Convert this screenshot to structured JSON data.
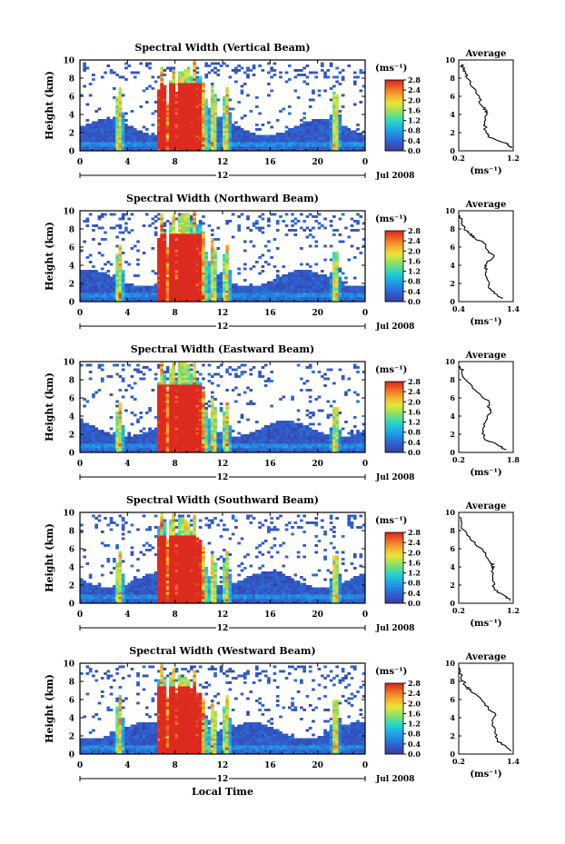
{
  "chart_data": [
    {
      "type": "heatmap",
      "title": "Spectral Width (Vertical Beam)",
      "ylabel": "Height (km)",
      "ylim": [
        0,
        10
      ],
      "yticks": [
        "0",
        "2",
        "4",
        "6",
        "8",
        "10"
      ],
      "xlim": [
        0,
        24
      ],
      "xticks": [
        "0",
        "4",
        "8",
        "12",
        "16",
        "20",
        "0"
      ],
      "date_label": "12",
      "month_label": "Jul 2008",
      "colorbar": {
        "unit": "(ms⁻¹)",
        "range": [
          0.0,
          2.8
        ],
        "ticks": [
          "2.8",
          "2.4",
          "2.0",
          "1.6",
          "1.2",
          "0.8",
          "0.4",
          "0.0"
        ]
      },
      "profile": {
        "type": "line",
        "title": "Average",
        "xlim": [
          0.2,
          1.2
        ],
        "xticks": [
          "0.2",
          "1.2"
        ],
        "xlabel": "(ms⁻¹)",
        "height": [
          0.3,
          0.8,
          1.5,
          2.0,
          3.0,
          4.0,
          4.5,
          5.0,
          6.0,
          7.0,
          8.0,
          8.5,
          9.0,
          9.5
        ],
        "width": [
          1.15,
          1.1,
          0.75,
          0.7,
          0.68,
          0.72,
          0.7,
          0.62,
          0.58,
          0.45,
          0.35,
          0.32,
          0.28,
          0.25
        ]
      }
    },
    {
      "type": "heatmap",
      "title": "Spectral Width (Northward Beam)",
      "ylabel": "Height (km)",
      "ylim": [
        0,
        10
      ],
      "yticks": [
        "0",
        "2",
        "4",
        "6",
        "8",
        "10"
      ],
      "xlim": [
        0,
        24
      ],
      "xticks": [
        "0",
        "4",
        "8",
        "12",
        "16",
        "20",
        "0"
      ],
      "date_label": "12",
      "month_label": "Jul 2008",
      "colorbar": {
        "unit": "(ms⁻¹)",
        "range": [
          0.0,
          2.8
        ],
        "ticks": [
          "2.8",
          "2.4",
          "2.0",
          "1.6",
          "1.2",
          "0.8",
          "0.4",
          "0.0"
        ]
      },
      "profile": {
        "type": "line",
        "title": "Average",
        "xlim": [
          0.4,
          1.4
        ],
        "xticks": [
          "0.4",
          "1.4"
        ],
        "xlabel": "(ms⁻¹)",
        "height": [
          0.3,
          0.8,
          1.5,
          2.5,
          3.5,
          4.0,
          5.0,
          5.5,
          6.5,
          7.0,
          7.5,
          8.0,
          9.0,
          9.5
        ],
        "width": [
          1.2,
          1.1,
          0.95,
          0.92,
          0.9,
          0.88,
          1.05,
          0.95,
          0.85,
          0.7,
          0.6,
          0.5,
          0.45,
          0.42
        ]
      }
    },
    {
      "type": "heatmap",
      "title": "Spectral Width (Eastward Beam)",
      "ylabel": "Height (km)",
      "ylim": [
        0,
        10
      ],
      "yticks": [
        "0",
        "2",
        "4",
        "6",
        "8",
        "10"
      ],
      "xlim": [
        0,
        24
      ],
      "xticks": [
        "0",
        "4",
        "8",
        "12",
        "16",
        "20",
        "0"
      ],
      "date_label": "12",
      "month_label": "Jul 2008",
      "colorbar": {
        "unit": "(ms⁻¹)",
        "range": [
          0.0,
          2.8
        ],
        "ticks": [
          "2.8",
          "2.4",
          "2.0",
          "1.6",
          "1.2",
          "0.8",
          "0.4",
          "0.0"
        ]
      },
      "profile": {
        "type": "line",
        "title": "Average",
        "xlim": [
          0.2,
          1.8
        ],
        "xticks": [
          "0.2",
          "1.8"
        ],
        "xlabel": "(ms⁻¹)",
        "height": [
          0.3,
          0.8,
          1.5,
          2.5,
          3.5,
          4.5,
          5.0,
          5.5,
          6.5,
          7.5,
          8.0,
          9.0,
          9.5
        ],
        "width": [
          1.6,
          1.35,
          0.95,
          0.9,
          1.0,
          1.15,
          1.05,
          1.1,
          0.8,
          0.55,
          0.4,
          0.3,
          0.25
        ]
      }
    },
    {
      "type": "heatmap",
      "title": "Spectral Width (Southward Beam)",
      "ylabel": "Height (km)",
      "ylim": [
        0,
        10
      ],
      "yticks": [
        "0",
        "2",
        "4",
        "6",
        "8",
        "10"
      ],
      "xlim": [
        0,
        24
      ],
      "xticks": [
        "0",
        "4",
        "8",
        "12",
        "16",
        "20",
        "0"
      ],
      "date_label": "12",
      "month_label": "Jul 2008",
      "colorbar": {
        "unit": "(ms⁻¹)",
        "range": [
          0.0,
          2.8
        ],
        "ticks": [
          "2.8",
          "2.4",
          "2.0",
          "1.6",
          "1.2",
          "0.8",
          "0.4",
          "0.0"
        ]
      },
      "profile": {
        "type": "line",
        "title": "Average",
        "xlim": [
          0.2,
          1.2
        ],
        "xticks": [
          "0.2",
          "1.2"
        ],
        "xlabel": "(ms⁻¹)",
        "height": [
          0.3,
          0.8,
          1.5,
          2.5,
          3.5,
          4.0,
          4.5,
          5.5,
          6.5,
          7.5,
          8.5,
          9.5
        ],
        "width": [
          1.15,
          1.05,
          0.85,
          0.82,
          0.8,
          0.85,
          0.78,
          0.7,
          0.5,
          0.35,
          0.25,
          0.22
        ]
      }
    },
    {
      "type": "heatmap",
      "title": "Spectral Width (Westward Beam)",
      "ylabel": "Height (km)",
      "ylim": [
        0,
        10
      ],
      "yticks": [
        "0",
        "2",
        "4",
        "6",
        "8",
        "10"
      ],
      "xlim": [
        0,
        24
      ],
      "xticks": [
        "0",
        "4",
        "8",
        "12",
        "16",
        "20",
        "0"
      ],
      "date_label": "12",
      "month_label": "Jul 2008",
      "xlabel": "Local Time",
      "colorbar": {
        "unit": "(ms⁻¹)",
        "range": [
          0.0,
          2.8
        ],
        "ticks": [
          "2.8",
          "2.4",
          "2.0",
          "1.6",
          "1.2",
          "0.8",
          "0.4",
          "0.0"
        ]
      },
      "profile": {
        "type": "line",
        "title": "Average",
        "xlim": [
          0.2,
          1.4
        ],
        "xticks": [
          "0.2",
          "1.4"
        ],
        "xlabel": "(ms⁻¹)",
        "height": [
          0.3,
          0.8,
          1.5,
          2.5,
          3.5,
          4.5,
          5.0,
          6.0,
          7.0,
          7.5,
          8.5,
          9.5
        ],
        "width": [
          1.35,
          1.25,
          1.05,
          1.0,
          0.95,
          1.0,
          0.85,
          0.7,
          0.45,
          0.35,
          0.25,
          0.22
        ]
      }
    }
  ]
}
